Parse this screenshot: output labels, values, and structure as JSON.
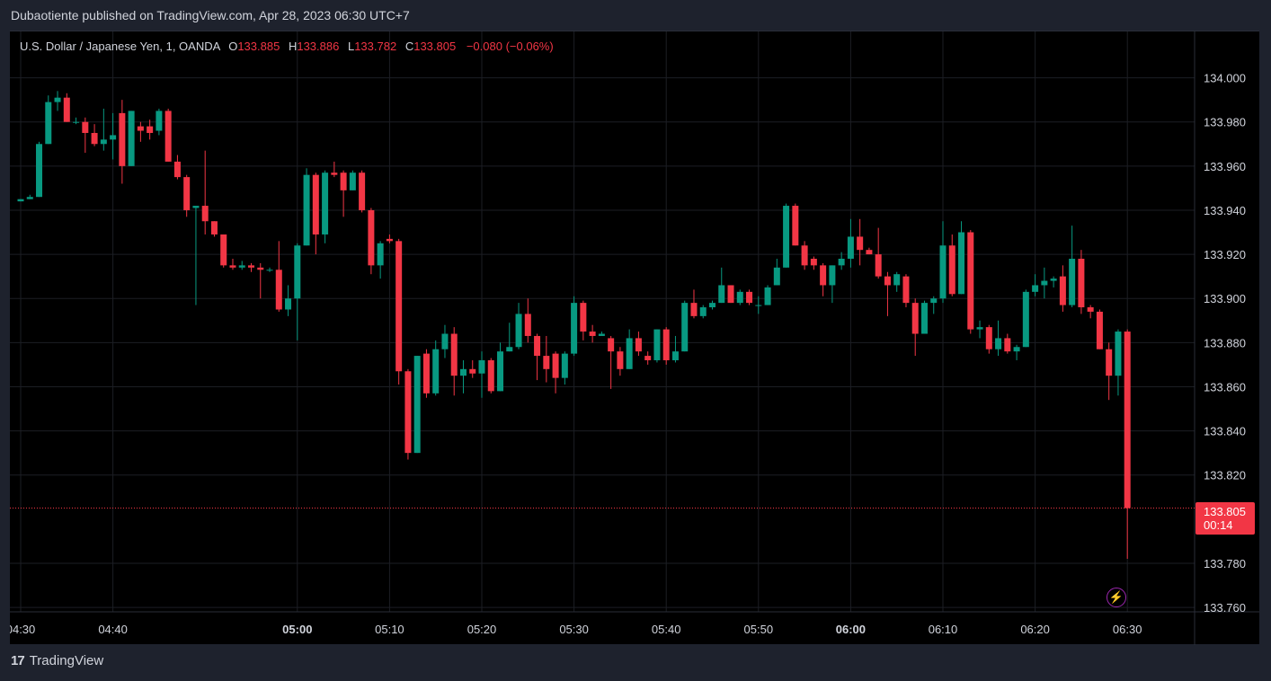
{
  "header": {
    "published_text": "Dubaotiente published on TradingView.com, Apr 28, 2023 06:30 UTC+7"
  },
  "legend": {
    "symbol": "U.S. Dollar / Japanese Yen, 1, OANDA",
    "open_label": "O",
    "open": "133.885",
    "high_label": "H",
    "high": "133.886",
    "low_label": "L",
    "low": "133.782",
    "close_label": "C",
    "close": "133.805",
    "change": "−0.080 (−0.06%)"
  },
  "price_tag": {
    "price": "133.805",
    "countdown": "00:14"
  },
  "footer": {
    "logo_mark": "17",
    "brand": "TradingView"
  },
  "icons": {
    "flash": "lightning-icon"
  },
  "colors": {
    "up": "#089981",
    "down": "#f23645",
    "background": "#000000",
    "grid": "#1c1e24",
    "text": "#d1d4dc",
    "last_price_line": "#f23645"
  },
  "chart_data": {
    "type": "candlestick",
    "title": "U.S. Dollar / Japanese Yen, 1, OANDA",
    "timeframe": "1",
    "ylim": [
      133.758,
      134.021
    ],
    "y_ticks": [
      "134.000",
      "133.980",
      "133.960",
      "133.940",
      "133.920",
      "133.900",
      "133.880",
      "133.860",
      "133.840",
      "133.820",
      "133.780",
      "133.760"
    ],
    "x_ticks": [
      {
        "minute": 0,
        "label": "04:30",
        "bold": false
      },
      {
        "minute": 10,
        "label": "04:40",
        "bold": false
      },
      {
        "minute": 30,
        "label": "05:00",
        "bold": true
      },
      {
        "minute": 40,
        "label": "05:10",
        "bold": false
      },
      {
        "minute": 50,
        "label": "05:20",
        "bold": false
      },
      {
        "minute": 60,
        "label": "05:30",
        "bold": false
      },
      {
        "minute": 70,
        "label": "05:40",
        "bold": false
      },
      {
        "minute": 80,
        "label": "05:50",
        "bold": false
      },
      {
        "minute": 90,
        "label": "06:00",
        "bold": true
      },
      {
        "minute": 100,
        "label": "06:10",
        "bold": false
      },
      {
        "minute": 110,
        "label": "06:20",
        "bold": false
      },
      {
        "minute": 120,
        "label": "06:30",
        "bold": false
      }
    ],
    "last_price": 133.805,
    "candles": [
      {
        "t": "04:30",
        "o": 133.944,
        "h": 133.945,
        "l": 133.944,
        "c": 133.945
      },
      {
        "t": "04:31",
        "o": 133.945,
        "h": 133.947,
        "l": 133.945,
        "c": 133.946
      },
      {
        "t": "04:32",
        "o": 133.946,
        "h": 133.971,
        "l": 133.946,
        "c": 133.97
      },
      {
        "t": "04:33",
        "o": 133.97,
        "h": 133.992,
        "l": 133.97,
        "c": 133.989
      },
      {
        "t": "04:34",
        "o": 133.989,
        "h": 133.994,
        "l": 133.985,
        "c": 133.991
      },
      {
        "t": "04:35",
        "o": 133.991,
        "h": 133.993,
        "l": 133.98,
        "c": 133.98
      },
      {
        "t": "04:36",
        "o": 133.98,
        "h": 133.982,
        "l": 133.979,
        "c": 133.98
      },
      {
        "t": "04:37",
        "o": 133.98,
        "h": 133.982,
        "l": 133.966,
        "c": 133.975
      },
      {
        "t": "04:38",
        "o": 133.975,
        "h": 133.979,
        "l": 133.969,
        "c": 133.97
      },
      {
        "t": "04:39",
        "o": 133.97,
        "h": 133.986,
        "l": 133.967,
        "c": 133.972
      },
      {
        "t": "04:40",
        "o": 133.972,
        "h": 133.984,
        "l": 133.963,
        "c": 133.974
      },
      {
        "t": "04:41",
        "o": 133.984,
        "h": 133.99,
        "l": 133.952,
        "c": 133.96
      },
      {
        "t": "04:42",
        "o": 133.96,
        "h": 133.985,
        "l": 133.96,
        "c": 133.985
      },
      {
        "t": "04:43",
        "o": 133.978,
        "h": 133.98,
        "l": 133.971,
        "c": 133.976
      },
      {
        "t": "04:44",
        "o": 133.978,
        "h": 133.981,
        "l": 133.972,
        "c": 133.975
      },
      {
        "t": "04:45",
        "o": 133.976,
        "h": 133.986,
        "l": 133.974,
        "c": 133.985
      },
      {
        "t": "04:46",
        "o": 133.985,
        "h": 133.986,
        "l": 133.962,
        "c": 133.962
      },
      {
        "t": "04:47",
        "o": 133.962,
        "h": 133.965,
        "l": 133.954,
        "c": 133.955
      },
      {
        "t": "04:48",
        "o": 133.955,
        "h": 133.956,
        "l": 133.937,
        "c": 133.94
      },
      {
        "t": "04:49",
        "o": 133.941,
        "h": 133.942,
        "l": 133.897,
        "c": 133.942
      },
      {
        "t": "04:50",
        "o": 133.942,
        "h": 133.967,
        "l": 133.929,
        "c": 133.935
      },
      {
        "t": "04:51",
        "o": 133.935,
        "h": 133.935,
        "l": 133.928,
        "c": 133.929
      },
      {
        "t": "04:52",
        "o": 133.929,
        "h": 133.929,
        "l": 133.914,
        "c": 133.915
      },
      {
        "t": "04:53",
        "o": 133.915,
        "h": 133.918,
        "l": 133.913,
        "c": 133.914
      },
      {
        "t": "04:54",
        "o": 133.914,
        "h": 133.917,
        "l": 133.913,
        "c": 133.915
      },
      {
        "t": "04:55",
        "o": 133.915,
        "h": 133.916,
        "l": 133.912,
        "c": 133.914
      },
      {
        "t": "04:56",
        "o": 133.914,
        "h": 133.916,
        "l": 133.9,
        "c": 133.913
      },
      {
        "t": "04:57",
        "o": 133.913,
        "h": 133.914,
        "l": 133.912,
        "c": 133.913
      },
      {
        "t": "04:58",
        "o": 133.913,
        "h": 133.926,
        "l": 133.894,
        "c": 133.895
      },
      {
        "t": "04:59",
        "o": 133.895,
        "h": 133.906,
        "l": 133.892,
        "c": 133.9
      },
      {
        "t": "05:00",
        "o": 133.9,
        "h": 133.925,
        "l": 133.881,
        "c": 133.924
      },
      {
        "t": "05:01",
        "o": 133.924,
        "h": 133.959,
        "l": 133.924,
        "c": 133.956
      },
      {
        "t": "05:02",
        "o": 133.956,
        "h": 133.957,
        "l": 133.92,
        "c": 133.929
      },
      {
        "t": "05:03",
        "o": 133.929,
        "h": 133.958,
        "l": 133.925,
        "c": 133.957
      },
      {
        "t": "05:04",
        "o": 133.957,
        "h": 133.962,
        "l": 133.955,
        "c": 133.956
      },
      {
        "t": "05:05",
        "o": 133.957,
        "h": 133.958,
        "l": 133.937,
        "c": 133.949
      },
      {
        "t": "05:06",
        "o": 133.949,
        "h": 133.958,
        "l": 133.949,
        "c": 133.957
      },
      {
        "t": "05:07",
        "o": 133.957,
        "h": 133.958,
        "l": 133.939,
        "c": 133.94
      },
      {
        "t": "05:08",
        "o": 133.94,
        "h": 133.941,
        "l": 133.911,
        "c": 133.915
      },
      {
        "t": "05:09",
        "o": 133.915,
        "h": 133.926,
        "l": 133.909,
        "c": 133.925
      },
      {
        "t": "05:10",
        "o": 133.927,
        "h": 133.929,
        "l": 133.925,
        "c": 133.926
      },
      {
        "t": "05:11",
        "o": 133.926,
        "h": 133.927,
        "l": 133.861,
        "c": 133.867
      },
      {
        "t": "05:12",
        "o": 133.867,
        "h": 133.868,
        "l": 133.827,
        "c": 133.83
      },
      {
        "t": "05:13",
        "o": 133.83,
        "h": 133.874,
        "l": 133.83,
        "c": 133.874
      },
      {
        "t": "05:14",
        "o": 133.875,
        "h": 133.877,
        "l": 133.855,
        "c": 133.857
      },
      {
        "t": "05:15",
        "o": 133.857,
        "h": 133.881,
        "l": 133.856,
        "c": 133.877
      },
      {
        "t": "05:16",
        "o": 133.877,
        "h": 133.888,
        "l": 133.873,
        "c": 133.884
      },
      {
        "t": "05:17",
        "o": 133.884,
        "h": 133.887,
        "l": 133.856,
        "c": 133.865
      },
      {
        "t": "05:18",
        "o": 133.865,
        "h": 133.872,
        "l": 133.857,
        "c": 133.868
      },
      {
        "t": "05:19",
        "o": 133.868,
        "h": 133.872,
        "l": 133.864,
        "c": 133.866
      },
      {
        "t": "05:20",
        "o": 133.866,
        "h": 133.876,
        "l": 133.855,
        "c": 133.872
      },
      {
        "t": "05:21",
        "o": 133.872,
        "h": 133.873,
        "l": 133.857,
        "c": 133.858
      },
      {
        "t": "05:22",
        "o": 133.858,
        "h": 133.88,
        "l": 133.858,
        "c": 133.876
      },
      {
        "t": "05:23",
        "o": 133.876,
        "h": 133.889,
        "l": 133.876,
        "c": 133.878
      },
      {
        "t": "05:24",
        "o": 133.878,
        "h": 133.898,
        "l": 133.877,
        "c": 133.893
      },
      {
        "t": "05:25",
        "o": 133.893,
        "h": 133.9,
        "l": 133.88,
        "c": 133.883
      },
      {
        "t": "05:26",
        "o": 133.883,
        "h": 133.884,
        "l": 133.863,
        "c": 133.874
      },
      {
        "t": "05:27",
        "o": 133.874,
        "h": 133.883,
        "l": 133.862,
        "c": 133.868
      },
      {
        "t": "05:28",
        "o": 133.875,
        "h": 133.876,
        "l": 133.857,
        "c": 133.864
      },
      {
        "t": "05:29",
        "o": 133.864,
        "h": 133.876,
        "l": 133.861,
        "c": 133.875
      },
      {
        "t": "05:30",
        "o": 133.875,
        "h": 133.901,
        "l": 133.874,
        "c": 133.898
      },
      {
        "t": "05:31",
        "o": 133.898,
        "h": 133.899,
        "l": 133.881,
        "c": 133.885
      },
      {
        "t": "05:32",
        "o": 133.885,
        "h": 133.888,
        "l": 133.88,
        "c": 133.883
      },
      {
        "t": "05:33",
        "o": 133.883,
        "h": 133.885,
        "l": 133.883,
        "c": 133.884
      },
      {
        "t": "05:34",
        "o": 133.882,
        "h": 133.883,
        "l": 133.859,
        "c": 133.876
      },
      {
        "t": "05:35",
        "o": 133.876,
        "h": 133.878,
        "l": 133.865,
        "c": 133.868
      },
      {
        "t": "05:36",
        "o": 133.868,
        "h": 133.886,
        "l": 133.868,
        "c": 133.882
      },
      {
        "t": "05:37",
        "o": 133.882,
        "h": 133.885,
        "l": 133.874,
        "c": 133.876
      },
      {
        "t": "05:38",
        "o": 133.874,
        "h": 133.876,
        "l": 133.87,
        "c": 133.872
      },
      {
        "t": "05:39",
        "o": 133.872,
        "h": 133.886,
        "l": 133.871,
        "c": 133.886
      },
      {
        "t": "05:40",
        "o": 133.886,
        "h": 133.887,
        "l": 133.87,
        "c": 133.872
      },
      {
        "t": "05:41",
        "o": 133.872,
        "h": 133.883,
        "l": 133.871,
        "c": 133.876
      },
      {
        "t": "05:42",
        "o": 133.876,
        "h": 133.899,
        "l": 133.876,
        "c": 133.898
      },
      {
        "t": "05:43",
        "o": 133.898,
        "h": 133.904,
        "l": 133.891,
        "c": 133.892
      },
      {
        "t": "05:44",
        "o": 133.892,
        "h": 133.897,
        "l": 133.891,
        "c": 133.896
      },
      {
        "t": "05:45",
        "o": 133.896,
        "h": 133.899,
        "l": 133.895,
        "c": 133.898
      },
      {
        "t": "05:46",
        "o": 133.898,
        "h": 133.914,
        "l": 133.898,
        "c": 133.906
      },
      {
        "t": "05:47",
        "o": 133.906,
        "h": 133.906,
        "l": 133.898,
        "c": 133.898
      },
      {
        "t": "05:48",
        "o": 133.898,
        "h": 133.904,
        "l": 133.897,
        "c": 133.903
      },
      {
        "t": "05:49",
        "o": 133.903,
        "h": 133.904,
        "l": 133.897,
        "c": 133.898
      },
      {
        "t": "05:50",
        "o": 133.897,
        "h": 133.901,
        "l": 133.893,
        "c": 133.897
      },
      {
        "t": "05:51",
        "o": 133.897,
        "h": 133.906,
        "l": 133.897,
        "c": 133.905
      },
      {
        "t": "05:52",
        "o": 133.906,
        "h": 133.918,
        "l": 133.906,
        "c": 133.914
      },
      {
        "t": "05:53",
        "o": 133.914,
        "h": 133.943,
        "l": 133.914,
        "c": 133.942
      },
      {
        "t": "05:54",
        "o": 133.942,
        "h": 133.943,
        "l": 133.924,
        "c": 133.924
      },
      {
        "t": "05:55",
        "o": 133.924,
        "h": 133.926,
        "l": 133.913,
        "c": 133.915
      },
      {
        "t": "05:56",
        "o": 133.918,
        "h": 133.919,
        "l": 133.913,
        "c": 133.915
      },
      {
        "t": "05:57",
        "o": 133.915,
        "h": 133.916,
        "l": 133.901,
        "c": 133.906
      },
      {
        "t": "05:58",
        "o": 133.906,
        "h": 133.915,
        "l": 133.898,
        "c": 133.915
      },
      {
        "t": "05:59",
        "o": 133.915,
        "h": 133.921,
        "l": 133.913,
        "c": 133.918
      },
      {
        "t": "06:00",
        "o": 133.918,
        "h": 133.936,
        "l": 133.914,
        "c": 133.928
      },
      {
        "t": "06:01",
        "o": 133.928,
        "h": 133.936,
        "l": 133.915,
        "c": 133.922
      },
      {
        "t": "06:02",
        "o": 133.922,
        "h": 133.923,
        "l": 133.92,
        "c": 133.92
      },
      {
        "t": "06:03",
        "o": 133.92,
        "h": 133.932,
        "l": 133.909,
        "c": 133.91
      },
      {
        "t": "06:04",
        "o": 133.91,
        "h": 133.912,
        "l": 133.892,
        "c": 133.906
      },
      {
        "t": "06:05",
        "o": 133.906,
        "h": 133.912,
        "l": 133.903,
        "c": 133.911
      },
      {
        "t": "06:06",
        "o": 133.91,
        "h": 133.911,
        "l": 133.896,
        "c": 133.898
      },
      {
        "t": "06:07",
        "o": 133.898,
        "h": 133.9,
        "l": 133.874,
        "c": 133.884
      },
      {
        "t": "06:08",
        "o": 133.884,
        "h": 133.899,
        "l": 133.884,
        "c": 133.898
      },
      {
        "t": "06:09",
        "o": 133.898,
        "h": 133.901,
        "l": 133.893,
        "c": 133.9
      },
      {
        "t": "06:10",
        "o": 133.9,
        "h": 133.935,
        "l": 133.898,
        "c": 133.924
      },
      {
        "t": "06:11",
        "o": 133.924,
        "h": 133.929,
        "l": 133.901,
        "c": 133.902
      },
      {
        "t": "06:12",
        "o": 133.902,
        "h": 133.935,
        "l": 133.902,
        "c": 133.93
      },
      {
        "t": "06:13",
        "o": 133.93,
        "h": 133.931,
        "l": 133.884,
        "c": 133.886
      },
      {
        "t": "06:14",
        "o": 133.886,
        "h": 133.89,
        "l": 133.882,
        "c": 133.887
      },
      {
        "t": "06:15",
        "o": 133.887,
        "h": 133.888,
        "l": 133.875,
        "c": 133.877
      },
      {
        "t": "06:16",
        "o": 133.877,
        "h": 133.89,
        "l": 133.874,
        "c": 133.882
      },
      {
        "t": "06:17",
        "o": 133.882,
        "h": 133.884,
        "l": 133.875,
        "c": 133.876
      },
      {
        "t": "06:18",
        "o": 133.876,
        "h": 133.879,
        "l": 133.872,
        "c": 133.878
      },
      {
        "t": "06:19",
        "o": 133.878,
        "h": 133.904,
        "l": 133.878,
        "c": 133.903
      },
      {
        "t": "06:20",
        "o": 133.903,
        "h": 133.911,
        "l": 133.901,
        "c": 133.906
      },
      {
        "t": "06:21",
        "o": 133.906,
        "h": 133.914,
        "l": 133.9,
        "c": 133.908
      },
      {
        "t": "06:22",
        "o": 133.908,
        "h": 133.91,
        "l": 133.905,
        "c": 133.909
      },
      {
        "t": "06:23",
        "o": 133.91,
        "h": 133.915,
        "l": 133.894,
        "c": 133.897
      },
      {
        "t": "06:24",
        "o": 133.897,
        "h": 133.933,
        "l": 133.896,
        "c": 133.918
      },
      {
        "t": "06:25",
        "o": 133.918,
        "h": 133.922,
        "l": 133.893,
        "c": 133.896
      },
      {
        "t": "06:26",
        "o": 133.896,
        "h": 133.897,
        "l": 133.891,
        "c": 133.894
      },
      {
        "t": "06:27",
        "o": 133.894,
        "h": 133.895,
        "l": 133.877,
        "c": 133.877
      },
      {
        "t": "06:28",
        "o": 133.877,
        "h": 133.88,
        "l": 133.854,
        "c": 133.865
      },
      {
        "t": "06:29",
        "o": 133.865,
        "h": 133.886,
        "l": 133.856,
        "c": 133.885
      },
      {
        "t": "06:30",
        "o": 133.885,
        "h": 133.886,
        "l": 133.782,
        "c": 133.805
      }
    ]
  }
}
